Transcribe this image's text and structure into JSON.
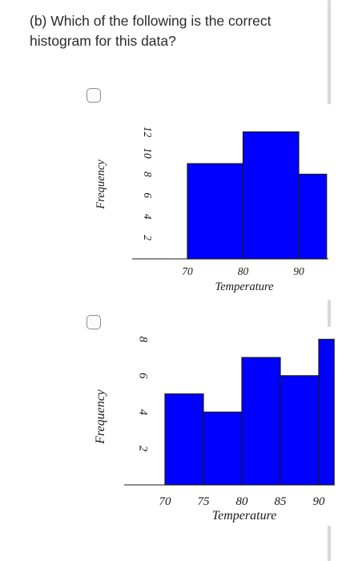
{
  "question": {
    "text": "(b) Which of the following is the correct histogram for this data?"
  },
  "options": [
    {
      "checked": false
    },
    {
      "checked": false
    }
  ],
  "chart_data": [
    {
      "type": "bar",
      "title": "",
      "xlabel": "Temperature",
      "ylabel": "Frequency",
      "bins": [
        [
          70,
          80
        ],
        [
          80,
          90
        ],
        [
          90,
          95
        ]
      ],
      "values": [
        9,
        12,
        8
      ],
      "x_ticks": [
        "70",
        "80",
        "90"
      ],
      "y_ticks": [
        "2",
        "4",
        "6",
        "8",
        "10",
        "12"
      ],
      "ylim": [
        0,
        13
      ],
      "bar_color": "#0000ff"
    },
    {
      "type": "bar",
      "title": "",
      "xlabel": "Temperature",
      "ylabel": "Frequency",
      "bins": [
        [
          70,
          75
        ],
        [
          75,
          80
        ],
        [
          80,
          85
        ],
        [
          85,
          90
        ],
        [
          90,
          92
        ]
      ],
      "values": [
        5,
        4,
        7,
        6,
        8
      ],
      "x_ticks": [
        "70",
        "75",
        "80",
        "85",
        "90"
      ],
      "y_ticks": [
        "2",
        "4",
        "6",
        "8"
      ],
      "ylim": [
        0,
        8
      ],
      "bar_color": "#0000ff"
    }
  ]
}
